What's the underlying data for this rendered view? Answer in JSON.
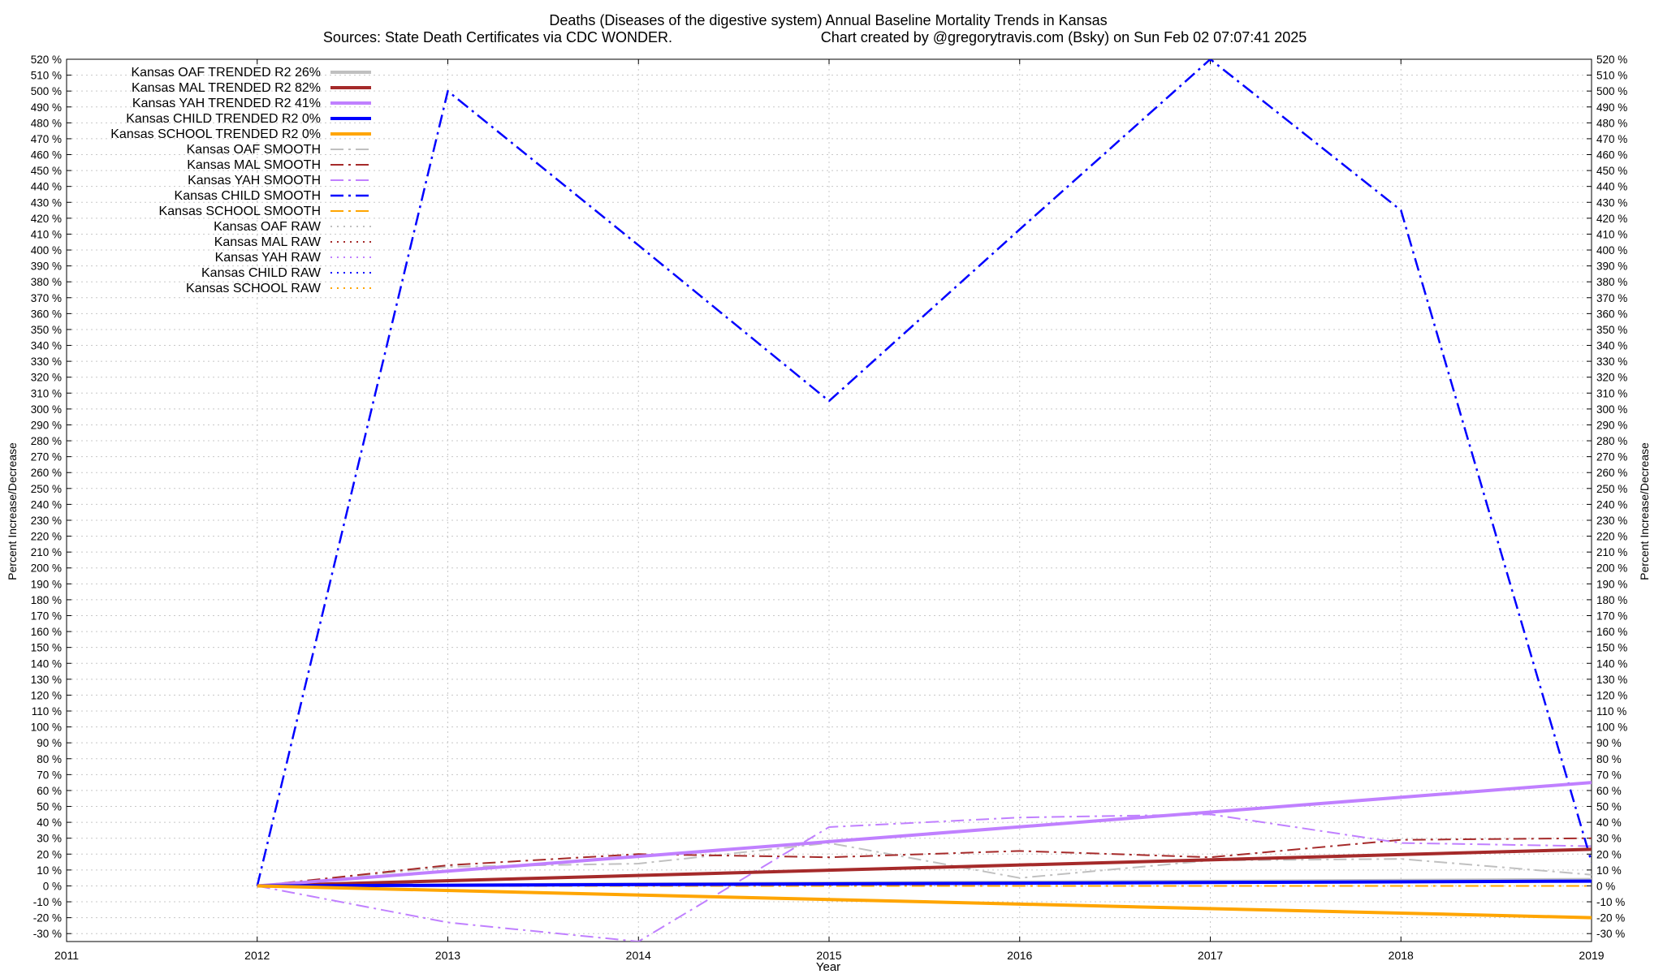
{
  "chart_data": {
    "type": "line",
    "title": "Deaths (Diseases of the digestive system)  Annual Baseline Mortality Trends in Kansas",
    "subtitle_left": "Sources: State Death Certificates via CDC WONDER.",
    "subtitle_right": "Chart created by @gregorytravis.com (Bsky) on Sun Feb 02 07:07:41 2025",
    "xlabel": "Year",
    "ylabel": "Percent Increase/Decrease",
    "ylabel_right": "Percent Increase/Decrease",
    "xlim": [
      2011,
      2019
    ],
    "ylim": [
      -35,
      520
    ],
    "x_ticks": [
      2011,
      2012,
      2013,
      2014,
      2015,
      2016,
      2017,
      2018,
      2019
    ],
    "y_ticks": [
      -30,
      -20,
      -10,
      0,
      10,
      20,
      30,
      40,
      50,
      60,
      70,
      80,
      90,
      100,
      110,
      120,
      130,
      140,
      150,
      160,
      170,
      180,
      190,
      200,
      210,
      220,
      230,
      240,
      250,
      260,
      270,
      280,
      290,
      300,
      310,
      320,
      330,
      340,
      350,
      360,
      370,
      380,
      390,
      400,
      410,
      420,
      430,
      440,
      450,
      460,
      470,
      480,
      490,
      500,
      510,
      520
    ],
    "y_tick_suffix": " %",
    "grid": true,
    "legend_position": "top-left",
    "series": [
      {
        "name": "Kansas OAF TRENDED R2  26%",
        "color": "#c0c0c0",
        "style": "solid",
        "width": 4,
        "x": [
          2012,
          2019
        ],
        "y": [
          0,
          4
        ]
      },
      {
        "name": "Kansas MAL TRENDED R2  82%",
        "color": "#a52a2a",
        "style": "solid",
        "width": 4,
        "x": [
          2012,
          2019
        ],
        "y": [
          0,
          23
        ]
      },
      {
        "name": "Kansas YAH TRENDED R2  41%",
        "color": "#c080ff",
        "style": "solid",
        "width": 4,
        "x": [
          2012,
          2019
        ],
        "y": [
          0,
          65
        ]
      },
      {
        "name": "Kansas CHILD TRENDED R2   0%",
        "color": "#0000ff",
        "style": "solid",
        "width": 4,
        "x": [
          2012,
          2019
        ],
        "y": [
          0,
          3
        ]
      },
      {
        "name": "Kansas SCHOOL TRENDED R2   0%",
        "color": "#ffa500",
        "style": "solid",
        "width": 4,
        "x": [
          2012,
          2019
        ],
        "y": [
          0,
          -20
        ]
      },
      {
        "name": "Kansas OAF SMOOTH",
        "color": "#c0c0c0",
        "style": "dashdot",
        "width": 2,
        "x": [
          2012,
          2013,
          2014,
          2015,
          2016,
          2017,
          2018,
          2019
        ],
        "y": [
          0,
          12,
          14,
          27,
          5,
          16,
          17,
          7
        ]
      },
      {
        "name": "Kansas MAL SMOOTH",
        "color": "#a52a2a",
        "style": "dashdot",
        "width": 2,
        "x": [
          2012,
          2013,
          2014,
          2015,
          2016,
          2017,
          2018,
          2019
        ],
        "y": [
          0,
          13,
          20,
          18,
          22,
          18,
          29,
          30
        ]
      },
      {
        "name": "Kansas YAH SMOOTH",
        "color": "#c080ff",
        "style": "dashdot",
        "width": 2,
        "x": [
          2012,
          2013,
          2014,
          2015,
          2016,
          2017,
          2018,
          2019
        ],
        "y": [
          0,
          -23,
          -35,
          37,
          43,
          45,
          27,
          25
        ]
      },
      {
        "name": "Kansas CHILD SMOOTH",
        "color": "#0000ff",
        "style": "dashdot",
        "width": 2.5,
        "x": [
          2012,
          2013,
          2014,
          2015,
          2016,
          2017,
          2018,
          2019
        ],
        "y": [
          0,
          500,
          403,
          305,
          413,
          520,
          425,
          15
        ]
      },
      {
        "name": "Kansas SCHOOL SMOOTH",
        "color": "#ffa500",
        "style": "dashdot",
        "width": 2,
        "x": [
          2012,
          2013,
          2014,
          2015,
          2016,
          2017,
          2018,
          2019
        ],
        "y": [
          0,
          0,
          0,
          0,
          0,
          0,
          0,
          0
        ]
      },
      {
        "name": "Kansas OAF RAW",
        "color": "#c0c0c0",
        "style": "dotted",
        "width": 2,
        "x": [],
        "y": []
      },
      {
        "name": "Kansas MAL RAW",
        "color": "#a52a2a",
        "style": "dotted",
        "width": 2,
        "x": [],
        "y": []
      },
      {
        "name": "Kansas YAH RAW",
        "color": "#c080ff",
        "style": "dotted",
        "width": 2,
        "x": [],
        "y": []
      },
      {
        "name": "Kansas CHILD RAW",
        "color": "#0000ff",
        "style": "dotted",
        "width": 2,
        "x": [],
        "y": []
      },
      {
        "name": "Kansas SCHOOL RAW",
        "color": "#ffa500",
        "style": "dotted",
        "width": 2,
        "x": [],
        "y": []
      }
    ]
  }
}
